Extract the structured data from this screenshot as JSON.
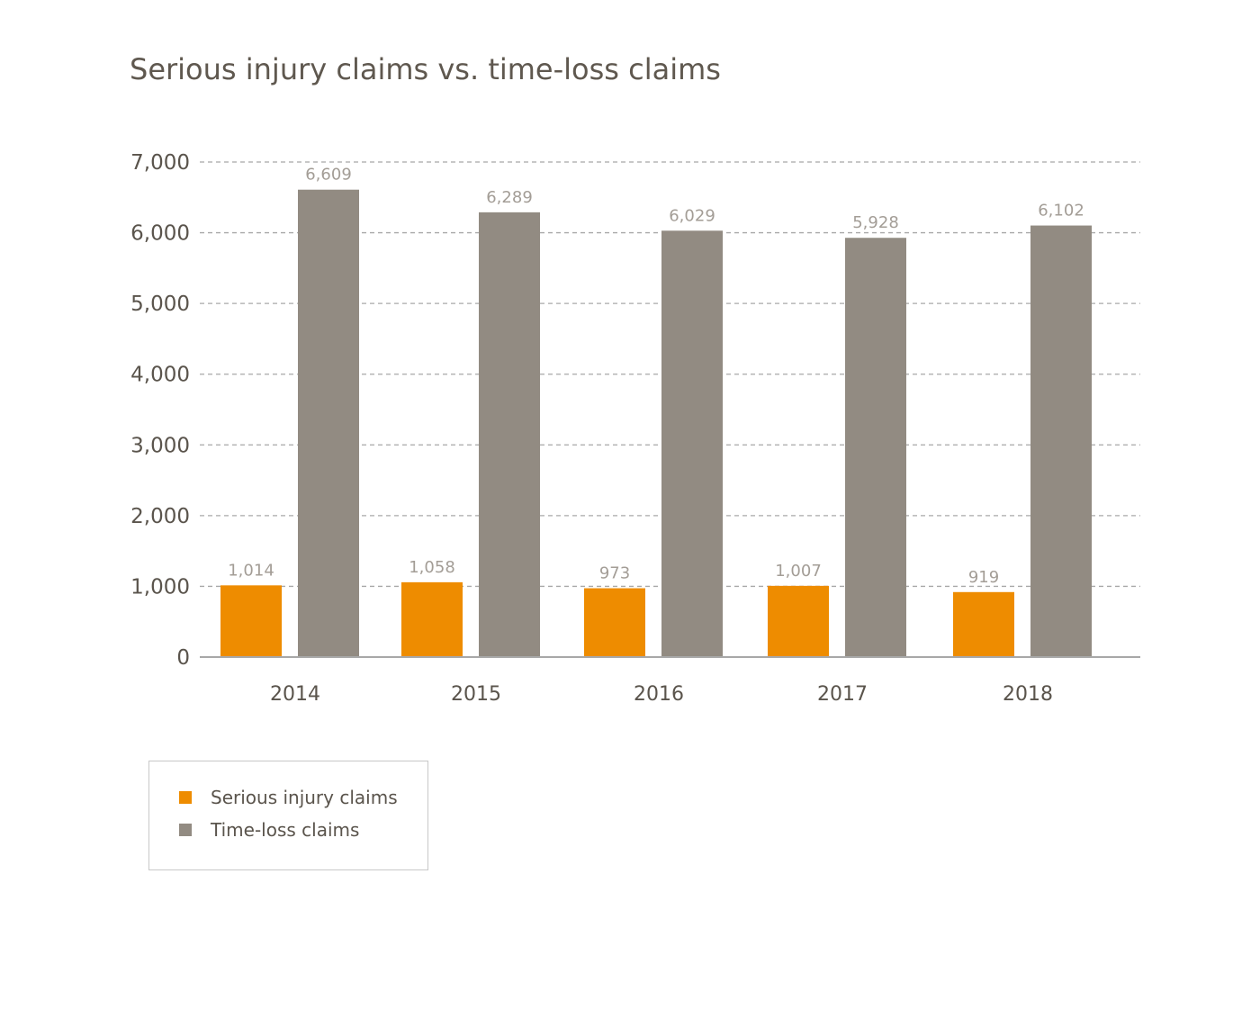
{
  "chart_data": {
    "type": "bar",
    "title": "Serious injury claims vs. time-loss claims",
    "xlabel": "",
    "ylabel": "",
    "categories": [
      "2014",
      "2015",
      "2016",
      "2017",
      "2018"
    ],
    "series": [
      {
        "name": "Serious injury claims",
        "color": "#ee8c00",
        "values": [
          1014,
          1058,
          973,
          1007,
          919
        ],
        "labels": [
          "1,014",
          "1,058",
          "973",
          "1,007",
          "919"
        ]
      },
      {
        "name": "Time-loss claims",
        "color": "#928b82",
        "values": [
          6609,
          6289,
          6029,
          5928,
          6102
        ],
        "labels": [
          "6,609",
          "6,289",
          "6,029",
          "5,928",
          "6,102"
        ]
      }
    ],
    "ylim": [
      0,
      7000
    ],
    "yticks": [
      0,
      1000,
      2000,
      3000,
      4000,
      5000,
      6000,
      7000
    ],
    "ytick_labels": [
      "0",
      "1,000",
      "2,000",
      "3,000",
      "4,000",
      "5,000",
      "6,000",
      "7,000"
    ],
    "grid": true,
    "legend_position": "bottom-left"
  }
}
